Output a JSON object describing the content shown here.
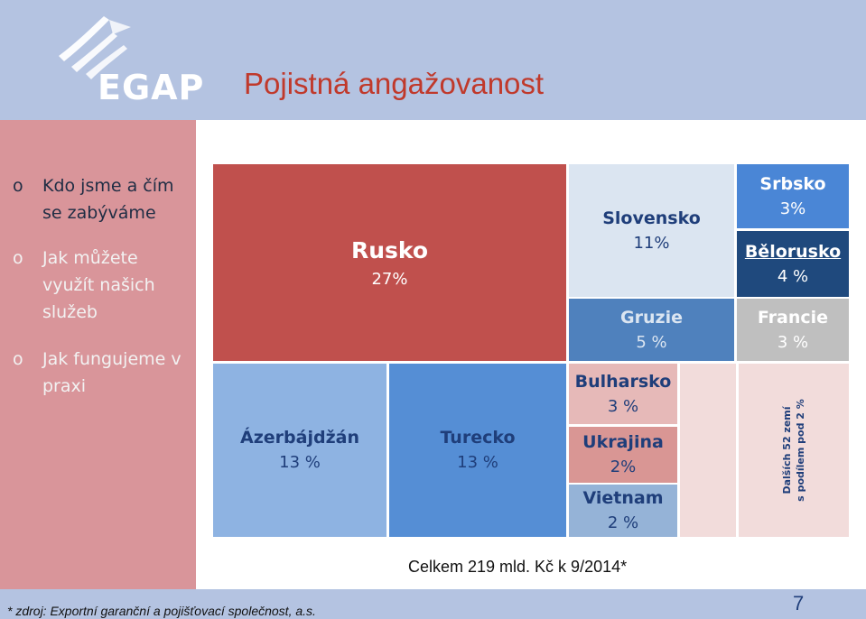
{
  "header": {
    "logo_text": "EGAP",
    "title": "Pojistná angažovanost"
  },
  "sidebar": {
    "items": [
      {
        "bullet": "o",
        "label": "Kdo jsme a čím se zabýváme",
        "active": true
      },
      {
        "bullet": "o",
        "label": "Jak můžete využít našich služeb",
        "active": false
      },
      {
        "bullet": "o",
        "label": "Jak fungujeme v praxi",
        "active": false
      }
    ]
  },
  "chart_data": {
    "type": "treemap",
    "unit": "%",
    "series": [
      {
        "name": "Rusko",
        "label": "27%",
        "value": 27,
        "color": "#c0504d"
      },
      {
        "name": "Ázerbájdžán",
        "label": "13 %",
        "value": 13,
        "color": "#8eb3e2"
      },
      {
        "name": "Turecko",
        "label": "13 %",
        "value": 13,
        "color": "#558ed5"
      },
      {
        "name": "Slovensko",
        "label": "11%",
        "value": 11,
        "color": "#dbe5f1"
      },
      {
        "name": "Gruzie",
        "label": "5 %",
        "value": 5,
        "color": "#4f81bd"
      },
      {
        "name": "Srbsko",
        "label": "3%",
        "value": 3,
        "color": "#4a86d6"
      },
      {
        "name": "Bělorusko",
        "label": "4 %",
        "value": 4,
        "color": "#1f497d"
      },
      {
        "name": "Francie",
        "label": "3 %",
        "value": 3,
        "color": "#bfbfbf"
      },
      {
        "name": "Bulharsko",
        "label": "3 %",
        "value": 3,
        "color": "#e6b9b8"
      },
      {
        "name": "Ukrajina",
        "label": "2%",
        "value": 2,
        "color": "#d99694"
      },
      {
        "name": "Vietnam",
        "label": "2 %",
        "value": 2,
        "color": "#95b3d7"
      },
      {
        "name": "Dalších 52 zemí s podílem pod 2 %",
        "value": 2,
        "color": "#f2dcdb"
      }
    ],
    "other_label_line1": "Dalších 52 zemí",
    "other_label_line2": "s podílem pod 2 %",
    "total": "Celkem 219 mld. Kč k 9/2014*"
  },
  "footer": {
    "source": "* zdroj: Exportní garanční a pojišťovací společnost, a.s.",
    "page_number": "7"
  },
  "colors": {
    "header_bg": "#b4c3e1",
    "sidebar_bg": "#d9959a",
    "title": "#c0392b"
  }
}
